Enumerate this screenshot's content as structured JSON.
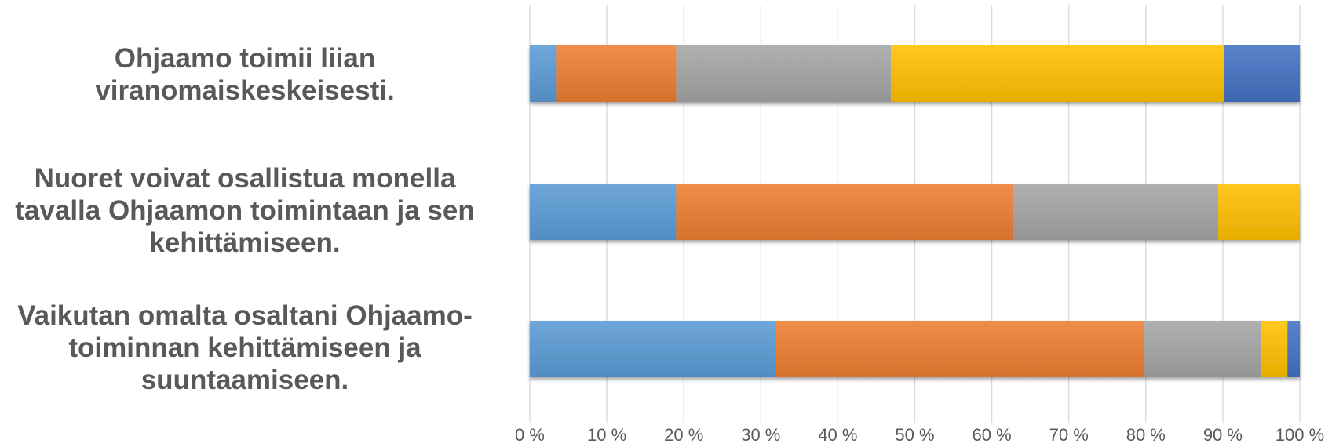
{
  "chart_data": {
    "type": "bar",
    "orientation": "horizontal",
    "stacked": true,
    "percent_stacked": true,
    "categories": [
      [
        "Ohjaamo toimii liian",
        "viranomaiskeskeisesti."
      ],
      [
        "Nuoret voivat osallistua monella",
        "tavalla Ohjaamon toimintaan ja sen",
        "kehittämiseen."
      ],
      [
        "Vaikutan omalta osaltani Ohjaamo-",
        "toiminnan kehittämiseen ja",
        "suuntaamiseen."
      ]
    ],
    "series": [
      {
        "color": "#5B9BD5",
        "values": [
          3.4,
          19.0,
          32.0
        ]
      },
      {
        "color": "#ED7D31",
        "values": [
          15.6,
          43.8,
          47.8
        ]
      },
      {
        "color": "#A5A5A5",
        "values": [
          27.9,
          26.6,
          15.2
        ]
      },
      {
        "color": "#FFC000",
        "values": [
          43.3,
          10.6,
          3.4
        ]
      },
      {
        "color": "#4472C4",
        "values": [
          9.8,
          0.0,
          1.6
        ]
      }
    ],
    "xlim": [
      0,
      100
    ],
    "xticks": [
      "0 %",
      "10 %",
      "20 %",
      "30 %",
      "40 %",
      "50 %",
      "60 %",
      "70 %",
      "80 %",
      "90 %",
      "100 %"
    ],
    "grid": true,
    "legend": "none",
    "xlabel": "",
    "ylabel": "",
    "title": ""
  }
}
